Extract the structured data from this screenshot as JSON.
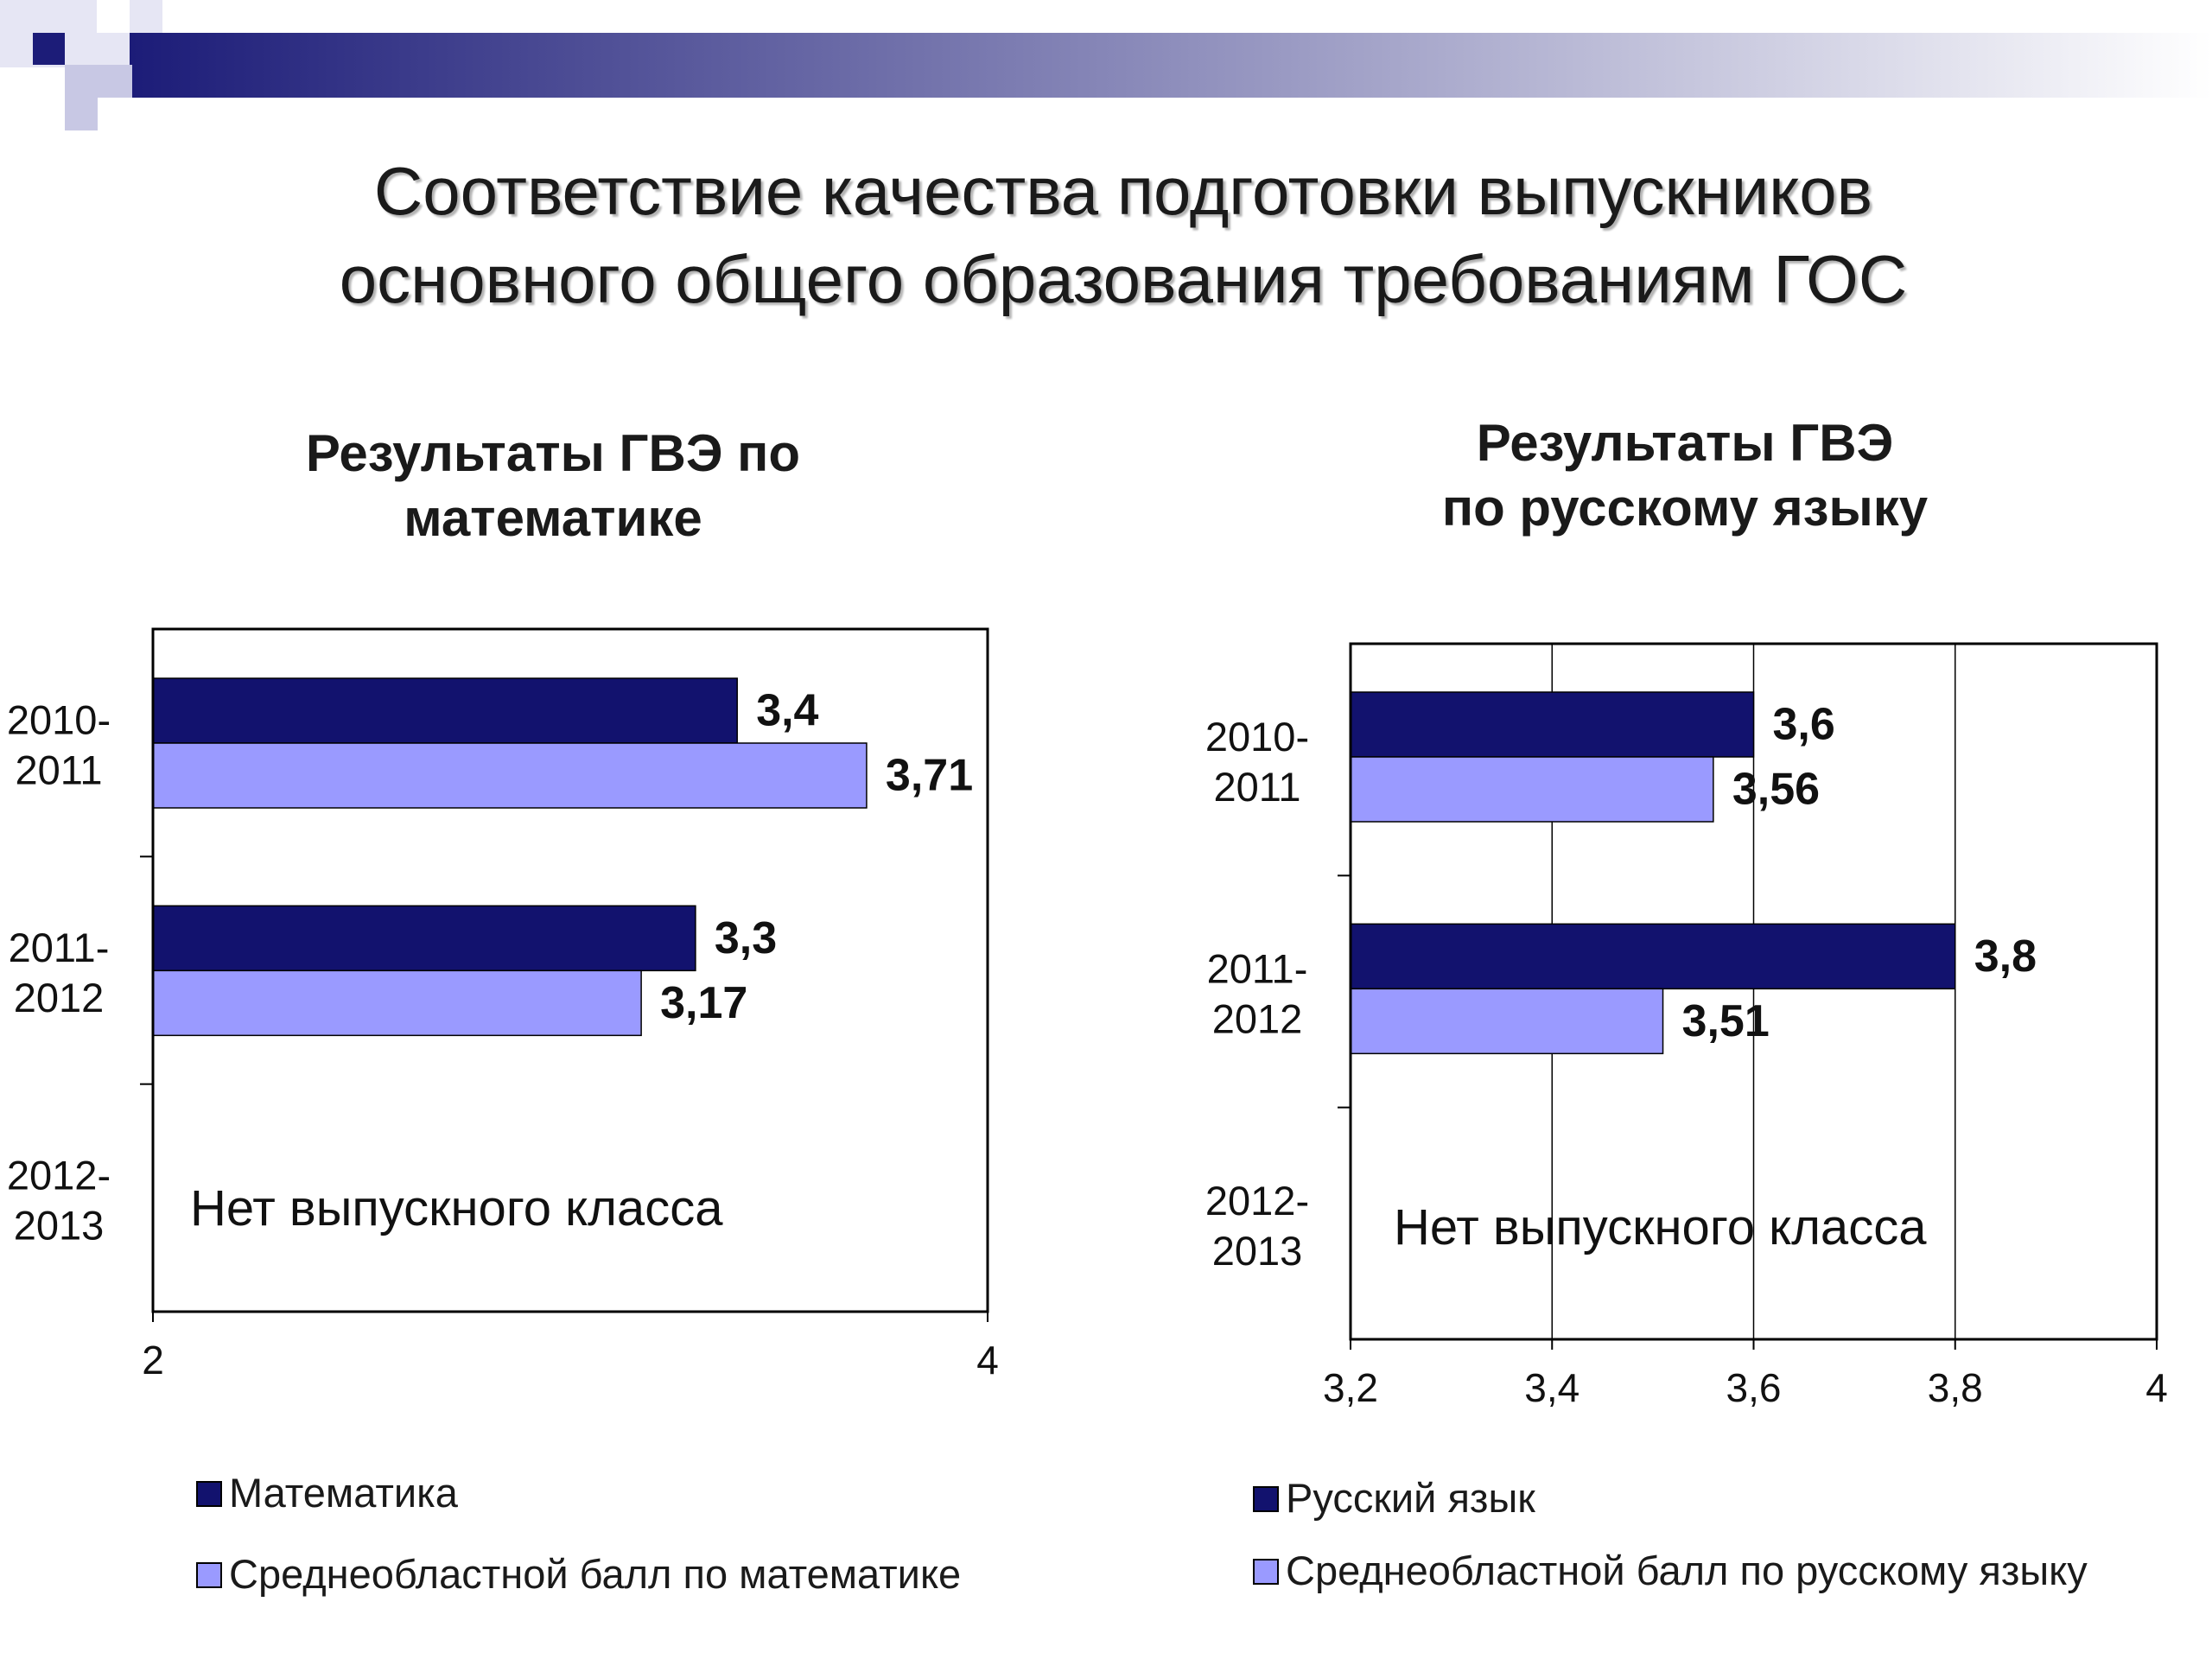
{
  "slide": {
    "title_line1": "Соответствие качества подготовки выпускников",
    "title_line2": "основного общего образования требованиям ГОС"
  },
  "colors": {
    "dark_bar": "#12126e",
    "light_bar": "#9a9aff",
    "banner_dark": "#1c1c78",
    "banner_light": "#ffffff"
  },
  "chart_data": [
    {
      "type": "bar",
      "orientation": "horizontal",
      "title_line1": "Результаты ГВЭ по",
      "title_line2": "математике",
      "categories": [
        [
          "2010-",
          "2011"
        ],
        [
          "2011-",
          "2012"
        ],
        [
          "2012-",
          "2013"
        ]
      ],
      "series": [
        {
          "name": "Математика",
          "color": "#12126e",
          "values": [
            3.4,
            3.3,
            null
          ],
          "labels": [
            "3,4",
            "3,3",
            ""
          ]
        },
        {
          "name": "Среднеобластной балл по математике",
          "color": "#9a9aff",
          "values": [
            3.71,
            3.17,
            null
          ],
          "labels": [
            "3,71",
            "3,17",
            ""
          ]
        }
      ],
      "annotation": "Нет выпускного класса",
      "xlim": [
        2,
        4
      ],
      "x_ticks": [
        "2",
        "4"
      ],
      "grid": false,
      "legend_position": "bottom"
    },
    {
      "type": "bar",
      "orientation": "horizontal",
      "title_line1": "Результаты ГВЭ",
      "title_line2": "по русскому языку",
      "categories": [
        [
          "2010-",
          "2011"
        ],
        [
          "2011-",
          "2012"
        ],
        [
          "2012-",
          "2013"
        ]
      ],
      "series": [
        {
          "name": "Русский язык",
          "color": "#12126e",
          "values": [
            3.6,
            3.8,
            null
          ],
          "labels": [
            "3,6",
            "3,8",
            ""
          ]
        },
        {
          "name": "Среднеобластной балл по русскому языку",
          "color": "#9a9aff",
          "values": [
            3.56,
            3.51,
            null
          ],
          "labels": [
            "3,56",
            "3,51",
            ""
          ]
        }
      ],
      "annotation": "Нет выпускного класса",
      "xlim": [
        3.2,
        4
      ],
      "x_ticks": [
        "3,2",
        "3,4",
        "3,6",
        "3,8",
        "4"
      ],
      "grid": true,
      "legend_position": "bottom"
    }
  ]
}
